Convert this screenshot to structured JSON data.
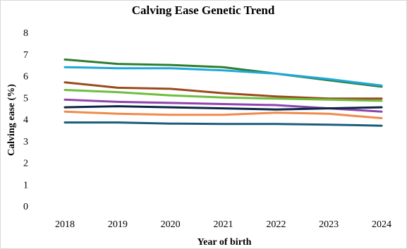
{
  "chart_data": {
    "type": "line",
    "title": "Calving Ease Genetic Trend",
    "xlabel": "Year of birth",
    "ylabel": "Calving ease (%)",
    "x": [
      "2018",
      "2019",
      "2020",
      "2021",
      "2022",
      "2023",
      "2024"
    ],
    "ylim": [
      0,
      8
    ],
    "yticks": [
      "0",
      "1",
      "2",
      "3",
      "4",
      "5",
      "6",
      "7",
      "8"
    ],
    "grid": false,
    "legend": "none",
    "series": [
      {
        "color": "#2e7d32",
        "values": [
          6.75,
          6.55,
          6.5,
          6.4,
          6.1,
          5.8,
          5.5
        ]
      },
      {
        "color": "#1fa8dc",
        "values": [
          6.4,
          6.35,
          6.35,
          6.25,
          6.1,
          5.85,
          5.55
        ]
      },
      {
        "color": "#9b4a1e",
        "values": [
          5.7,
          5.45,
          5.4,
          5.2,
          5.05,
          4.95,
          4.95
        ]
      },
      {
        "color": "#6cbf3e",
        "values": [
          5.35,
          5.25,
          5.1,
          5.0,
          4.95,
          4.9,
          4.85
        ]
      },
      {
        "color": "#8e44ad",
        "values": [
          4.9,
          4.8,
          4.75,
          4.7,
          4.65,
          4.5,
          4.35
        ]
      },
      {
        "color": "#0b2545",
        "values": [
          4.55,
          4.6,
          4.55,
          4.5,
          4.45,
          4.5,
          4.55
        ]
      },
      {
        "color": "#f08a4b",
        "values": [
          4.35,
          4.25,
          4.2,
          4.2,
          4.3,
          4.25,
          4.05
        ]
      },
      {
        "color": "#1b5e7a",
        "values": [
          3.85,
          3.85,
          3.8,
          3.78,
          3.78,
          3.75,
          3.7
        ]
      }
    ]
  }
}
